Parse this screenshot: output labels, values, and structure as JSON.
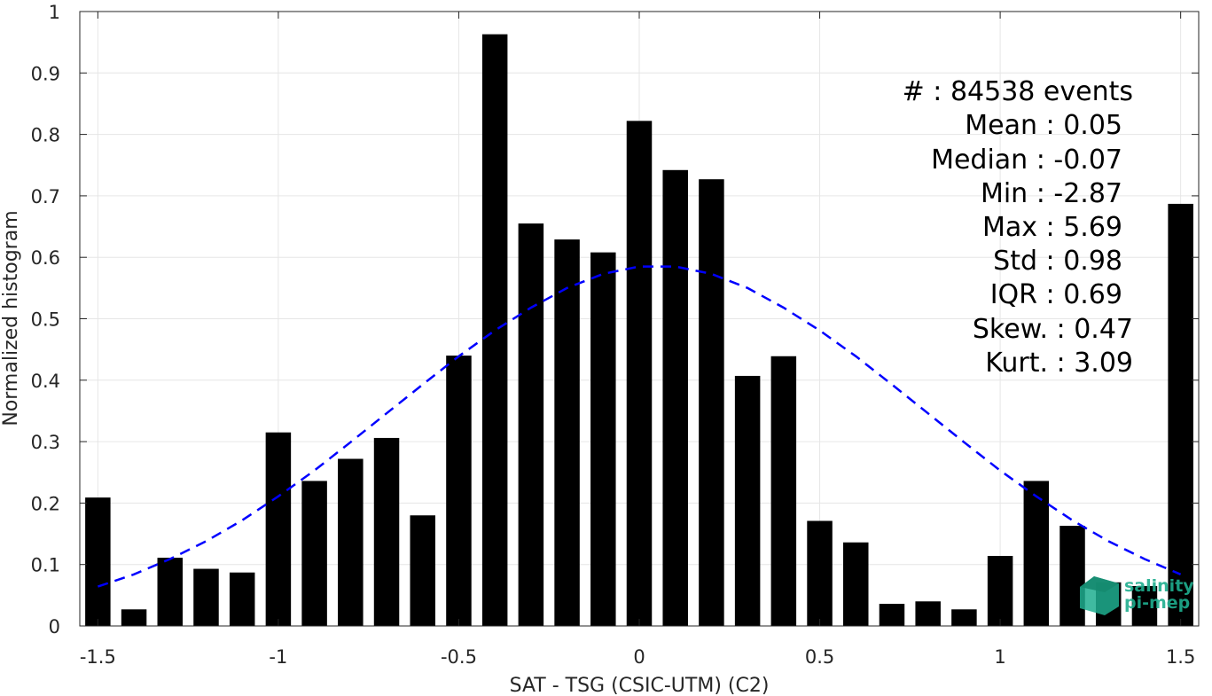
{
  "chart_data": {
    "type": "bar",
    "xlabel": "SAT - TSG (CSIC-UTM) (C2)",
    "ylabel": "Normalized histogram",
    "xlim": [
      -1.55,
      1.55
    ],
    "ylim": [
      0,
      1
    ],
    "xticks": [
      -1.5,
      -1,
      -0.5,
      0,
      0.5,
      1,
      1.5
    ],
    "xtick_labels": [
      "-1.5",
      "-1",
      "-0.5",
      "0",
      "0.5",
      "1",
      "1.5"
    ],
    "yticks": [
      0,
      0.1,
      0.2,
      0.3,
      0.4,
      0.5,
      0.6,
      0.7,
      0.8,
      0.9,
      1
    ],
    "ytick_labels": [
      "0",
      "0.1",
      "0.2",
      "0.3",
      "0.4",
      "0.5",
      "0.6",
      "0.7",
      "0.8",
      "0.9",
      "1"
    ],
    "grid": true,
    "bar_color": "#000000",
    "fit_color": "#0000ff",
    "bar_width": 0.07,
    "bins": [
      {
        "x": -1.5,
        "value": 0.209
      },
      {
        "x": -1.4,
        "value": 0.027
      },
      {
        "x": -1.3,
        "value": 0.111
      },
      {
        "x": -1.2,
        "value": 0.093
      },
      {
        "x": -1.1,
        "value": 0.087
      },
      {
        "x": -1.0,
        "value": 0.315
      },
      {
        "x": -0.9,
        "value": 0.236
      },
      {
        "x": -0.8,
        "value": 0.272
      },
      {
        "x": -0.7,
        "value": 0.306
      },
      {
        "x": -0.6,
        "value": 0.18
      },
      {
        "x": -0.5,
        "value": 0.44
      },
      {
        "x": -0.4,
        "value": 0.963
      },
      {
        "x": -0.3,
        "value": 0.655
      },
      {
        "x": -0.2,
        "value": 0.629
      },
      {
        "x": -0.1,
        "value": 0.608
      },
      {
        "x": 0.0,
        "value": 0.822
      },
      {
        "x": 0.1,
        "value": 0.742
      },
      {
        "x": 0.2,
        "value": 0.727
      },
      {
        "x": 0.3,
        "value": 0.407
      },
      {
        "x": 0.4,
        "value": 0.439
      },
      {
        "x": 0.5,
        "value": 0.171
      },
      {
        "x": 0.6,
        "value": 0.136
      },
      {
        "x": 0.7,
        "value": 0.036
      },
      {
        "x": 0.8,
        "value": 0.04
      },
      {
        "x": 0.9,
        "value": 0.027
      },
      {
        "x": 1.0,
        "value": 0.114
      },
      {
        "x": 1.1,
        "value": 0.236
      },
      {
        "x": 1.2,
        "value": 0.163
      },
      {
        "x": 1.3,
        "value": 0.071
      },
      {
        "x": 1.4,
        "value": 0.065
      },
      {
        "x": 1.5,
        "value": 0.687
      }
    ],
    "fit": {
      "style": "dashed",
      "x": [
        -1.5,
        -1.4,
        -1.3,
        -1.2,
        -1.1,
        -1.0,
        -0.9,
        -0.8,
        -0.7,
        -0.6,
        -0.5,
        -0.4,
        -0.3,
        -0.2,
        -0.1,
        0.0,
        0.1,
        0.2,
        0.3,
        0.4,
        0.5,
        0.6,
        0.7,
        0.8,
        0.9,
        1.0,
        1.1,
        1.2,
        1.3,
        1.4,
        1.5
      ],
      "y": [
        0.064,
        0.084,
        0.109,
        0.138,
        0.172,
        0.211,
        0.253,
        0.299,
        0.346,
        0.393,
        0.439,
        0.481,
        0.518,
        0.55,
        0.573,
        0.585,
        0.585,
        0.573,
        0.55,
        0.518,
        0.481,
        0.439,
        0.393,
        0.346,
        0.299,
        0.253,
        0.211,
        0.172,
        0.138,
        0.109,
        0.084
      ]
    },
    "stats": {
      "events": "#  : 84538 events",
      "mean": "Mean : 0.05",
      "median": "Median : -0.07",
      "min": "Min : -2.87",
      "max": "Max : 5.69",
      "std": "Std : 0.98",
      "iqr": "IQR : 0.69",
      "skew": "Skew. : 0.47",
      "kurt": "Kurt. : 3.09"
    },
    "logo": {
      "line1": "salinity",
      "line2": "pi-mep",
      "color": "#1fae8f"
    }
  }
}
